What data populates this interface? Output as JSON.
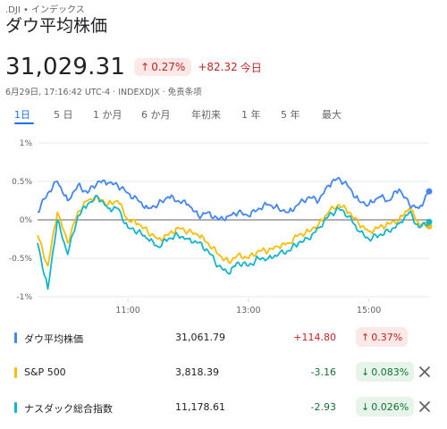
{
  "header": {
    "ticker": ".DJI • インデックス",
    "name": "ダウ平均株価",
    "price": "31,029.31",
    "pct": "0.27%",
    "change": "+82.32",
    "today": "今日",
    "meta": "6月29日, 17:16:42 UTC-4 · INDEXDJX · 免责条项"
  },
  "tabs": [
    {
      "label": "1日",
      "active": true
    },
    {
      "label": "5 日"
    },
    {
      "label": "1 か月"
    },
    {
      "label": "6 か月"
    },
    {
      "label": "年初来"
    },
    {
      "label": "1 年"
    },
    {
      "label": "5 年"
    },
    {
      "label": "最大"
    }
  ],
  "colors": {
    "dow": "#4285f4",
    "sp": "#fbbc04",
    "nasdaq": "#12b5cb",
    "up": "#c5221f",
    "down": "#137333"
  },
  "chart_data": {
    "type": "line",
    "y_tick_labels": [
      "1%",
      "0.5%",
      "0%",
      "-0.5%",
      "-1%"
    ],
    "x_tick_labels": [
      "11:00",
      "13:00",
      "15:00"
    ],
    "ylim": [
      -1,
      1
    ],
    "x": [
      9.5,
      9.67,
      9.83,
      10.0,
      10.17,
      10.33,
      10.5,
      10.67,
      10.83,
      11.0,
      11.17,
      11.33,
      11.5,
      11.67,
      11.83,
      12.0,
      12.17,
      12.33,
      12.5,
      12.67,
      12.83,
      13.0,
      13.17,
      13.33,
      13.5,
      13.67,
      13.83,
      14.0,
      14.17,
      14.33,
      14.5,
      14.67,
      14.83,
      15.0,
      15.17,
      15.33,
      15.5,
      15.67,
      15.83,
      16.0
    ],
    "series": [
      {
        "name": "ダウ平均株価",
        "color": "#4285f4",
        "values": [
          0.1,
          0.35,
          0.5,
          0.25,
          0.45,
          0.35,
          0.5,
          0.48,
          0.45,
          0.35,
          0.25,
          0.15,
          0.2,
          0.3,
          0.25,
          0.2,
          0.05,
          0.1,
          0.0,
          0.05,
          0.1,
          0.05,
          0.15,
          0.2,
          0.15,
          0.1,
          0.2,
          0.3,
          0.25,
          0.45,
          0.55,
          0.42,
          0.25,
          0.2,
          0.3,
          0.25,
          0.4,
          0.2,
          0.15,
          0.37
        ]
      },
      {
        "name": "S&P 500",
        "color": "#fbbc04",
        "values": [
          -0.2,
          -0.6,
          0.1,
          -0.3,
          0.1,
          0.25,
          0.3,
          0.2,
          0.25,
          0.0,
          -0.05,
          -0.15,
          -0.25,
          -0.2,
          -0.1,
          -0.15,
          -0.2,
          -0.3,
          -0.45,
          -0.55,
          -0.45,
          -0.5,
          -0.4,
          -0.4,
          -0.35,
          -0.3,
          -0.2,
          -0.15,
          -0.05,
          0.1,
          0.2,
          0.1,
          -0.05,
          -0.15,
          -0.1,
          -0.05,
          0.0,
          0.15,
          -0.05,
          -0.083
        ]
      },
      {
        "name": "ナスダック総合指数",
        "color": "#12b5cb",
        "values": [
          -0.3,
          -0.9,
          0.0,
          -0.45,
          0.05,
          0.2,
          0.3,
          0.15,
          0.15,
          -0.1,
          -0.15,
          -0.25,
          -0.35,
          -0.25,
          -0.2,
          -0.25,
          -0.3,
          -0.4,
          -0.6,
          -0.7,
          -0.55,
          -0.6,
          -0.5,
          -0.5,
          -0.45,
          -0.4,
          -0.3,
          -0.25,
          -0.1,
          0.05,
          0.15,
          0.05,
          -0.15,
          -0.25,
          -0.2,
          -0.15,
          -0.05,
          0.1,
          -0.1,
          -0.026
        ]
      }
    ]
  },
  "legend": [
    {
      "name": "ダウ平均株価",
      "price": "31,061.79",
      "change": "+114.80",
      "pct": "0.37%",
      "dir": "up",
      "close": false
    },
    {
      "name": "S&P 500",
      "price": "3,818.39",
      "change": "-3.16",
      "pct": "0.083%",
      "dir": "down",
      "close": true
    },
    {
      "name": "ナスダック総合指数",
      "price": "11,178.61",
      "change": "-2.93",
      "pct": "0.026%",
      "dir": "down",
      "close": true
    }
  ]
}
